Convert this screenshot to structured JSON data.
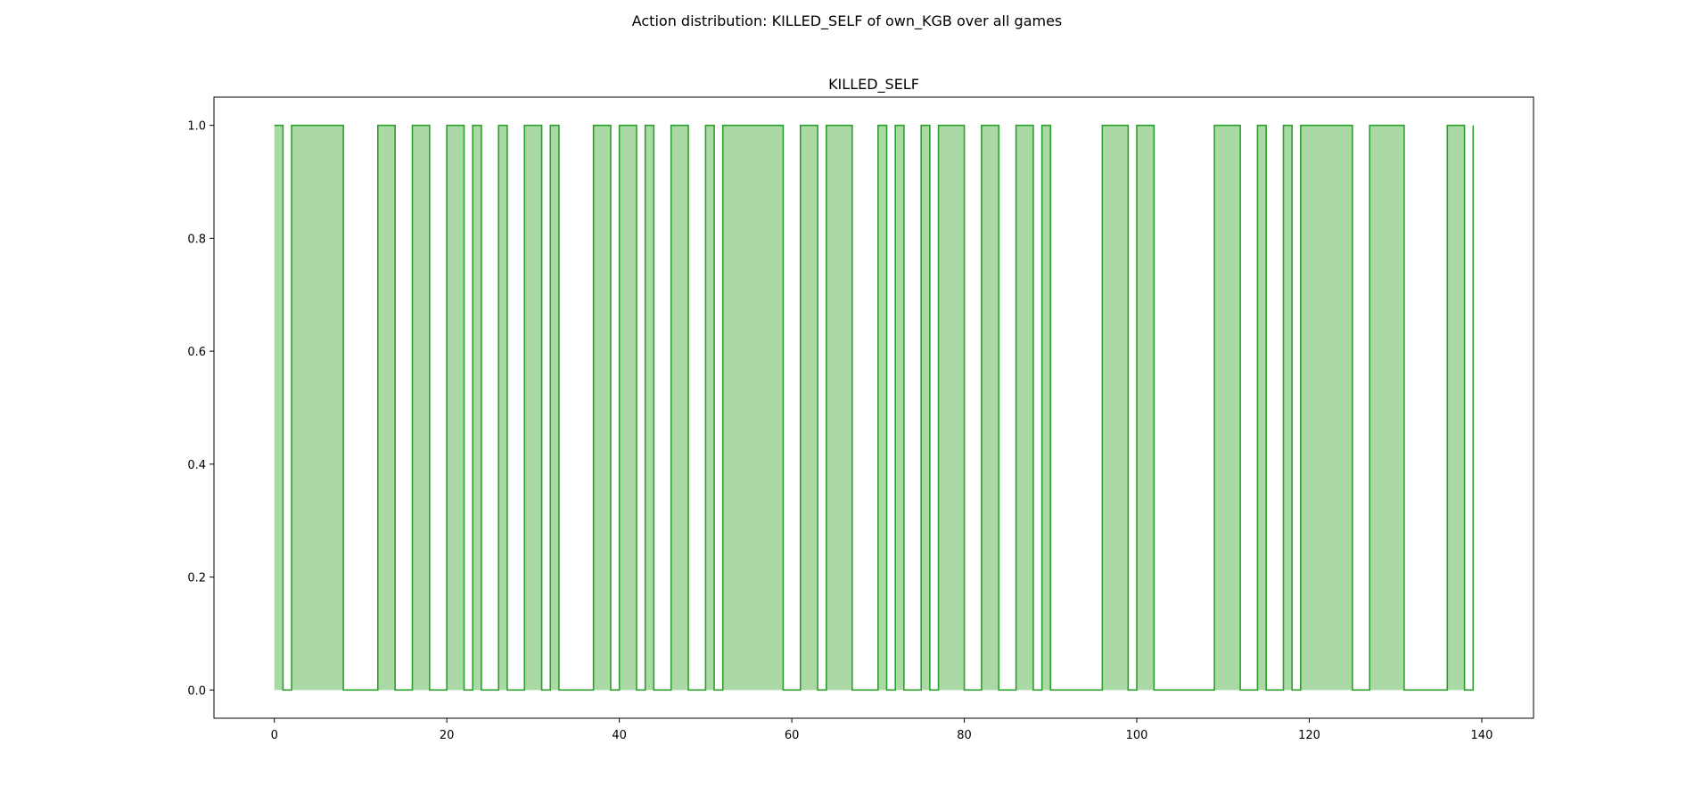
{
  "figure": {
    "suptitle": "Action distribution: KILLED_SELF of own_KGB over all games"
  },
  "colors": {
    "line": "#2ca02c",
    "fill": "#aad9a5"
  },
  "chart_data": {
    "type": "area",
    "title": "KILLED_SELF",
    "xlabel": "",
    "ylabel": "",
    "drawstyle": "steps-post",
    "xlim": [
      -7,
      146
    ],
    "ylim": [
      -0.05,
      1.05
    ],
    "xticks": [
      0,
      20,
      40,
      60,
      80,
      100,
      120,
      140
    ],
    "yticks": [
      0.0,
      0.2,
      0.4,
      0.6,
      0.8,
      1.0
    ],
    "xtick_labels": [
      "0",
      "20",
      "40",
      "60",
      "80",
      "100",
      "120",
      "140"
    ],
    "ytick_labels": [
      "0.0",
      "0.2",
      "0.4",
      "0.6",
      "0.8",
      "1.0"
    ],
    "grid": false,
    "series": [
      {
        "x": [
          0,
          1,
          2,
          3,
          4,
          5,
          6,
          7,
          8,
          9,
          10,
          11,
          12,
          13,
          14,
          15,
          16,
          17,
          18,
          19,
          20,
          21,
          22,
          23,
          24,
          25,
          26,
          27,
          28,
          29,
          30,
          31,
          32,
          33,
          34,
          35,
          36,
          37,
          38,
          39,
          40,
          41,
          42,
          43,
          44,
          45,
          46,
          47,
          48,
          49,
          50,
          51,
          52,
          53,
          54,
          55,
          56,
          57,
          58,
          59,
          60,
          61,
          62,
          63,
          64,
          65,
          66,
          67,
          68,
          69,
          70,
          71,
          72,
          73,
          74,
          75,
          76,
          77,
          78,
          79,
          80,
          81,
          82,
          83,
          84,
          85,
          86,
          87,
          88,
          89,
          90,
          91,
          92,
          93,
          94,
          95,
          96,
          97,
          98,
          99,
          100,
          101,
          102,
          103,
          104,
          105,
          106,
          107,
          108,
          109,
          110,
          111,
          112,
          113,
          114,
          115,
          116,
          117,
          118,
          119,
          120,
          121,
          122,
          123,
          124,
          125,
          126,
          127,
          128,
          129,
          130,
          131,
          132,
          133,
          134,
          135,
          136,
          137,
          138,
          139
        ],
        "values": [
          1,
          0,
          1,
          1,
          1,
          1,
          1,
          1,
          0,
          0,
          0,
          0,
          1,
          1,
          0,
          0,
          1,
          1,
          0,
          0,
          1,
          1,
          0,
          1,
          0,
          0,
          1,
          0,
          0,
          1,
          1,
          0,
          1,
          0,
          0,
          0,
          0,
          1,
          1,
          0,
          1,
          1,
          0,
          1,
          0,
          0,
          1,
          1,
          0,
          0,
          1,
          0,
          1,
          1,
          1,
          1,
          1,
          1,
          1,
          0,
          0,
          1,
          1,
          0,
          1,
          1,
          1,
          0,
          0,
          0,
          1,
          0,
          1,
          0,
          0,
          1,
          0,
          1,
          1,
          1,
          0,
          0,
          1,
          1,
          0,
          0,
          1,
          1,
          0,
          1,
          0,
          0,
          0,
          0,
          0,
          0,
          1,
          1,
          1,
          0,
          1,
          1,
          0,
          0,
          0,
          0,
          0,
          0,
          0,
          1,
          1,
          1,
          0,
          0,
          1,
          0,
          0,
          1,
          0,
          1,
          1,
          1,
          1,
          1,
          1,
          0,
          0,
          1,
          1,
          1,
          1,
          0,
          0,
          0,
          0,
          0,
          1,
          1,
          0,
          1
        ]
      }
    ]
  }
}
